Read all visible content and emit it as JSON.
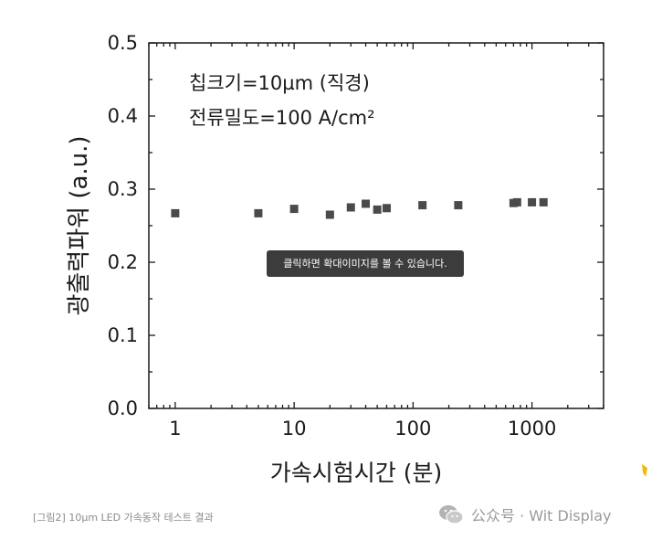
{
  "chart_data": {
    "type": "scatter",
    "xlabel": "가속시험시간 (분)",
    "ylabel": "광출력파워 (a.u.)",
    "xscale": "log",
    "xlim": [
      0.6,
      4000
    ],
    "ylim": [
      0,
      0.5
    ],
    "xticks": [
      1,
      10,
      100,
      1000
    ],
    "xtick_labels": [
      "1",
      "10",
      "100",
      "1000"
    ],
    "yticks": [
      0.0,
      0.1,
      0.2,
      0.3,
      0.4,
      0.5
    ],
    "ytick_labels": [
      "0.0",
      "0.1",
      "0.2",
      "0.3",
      "0.4",
      "0.5"
    ],
    "annotations": [
      "칩크기=10µm (직경)",
      "전류밀도=100 A/cm²"
    ],
    "series": [
      {
        "marker": "square",
        "color": "#4a4a4a",
        "x": [
          1,
          5,
          10,
          20,
          30,
          40,
          50,
          60,
          120,
          240,
          700,
          750,
          1000,
          1250
        ],
        "y": [
          0.267,
          0.267,
          0.273,
          0.265,
          0.275,
          0.28,
          0.272,
          0.274,
          0.278,
          0.278,
          0.281,
          0.282,
          0.282,
          0.282
        ]
      }
    ],
    "grid": false,
    "legend": "none"
  },
  "tooltip": {
    "text": "클릭하면 확대이미지를 볼 수 있습니다."
  },
  "caption": {
    "text": "[그림2] 10µm LED 가속동작 테스트 결과"
  },
  "watermark": {
    "text": "公众号 · Wit Display",
    "icon": "wechat-icon"
  },
  "colors": {
    "axis": "#1a1a1a",
    "marker": "#4a4a4a",
    "tooltip_bg": "#3c3c3c",
    "caption": "#8a8a8a",
    "edge_mark": "#f5b800"
  }
}
